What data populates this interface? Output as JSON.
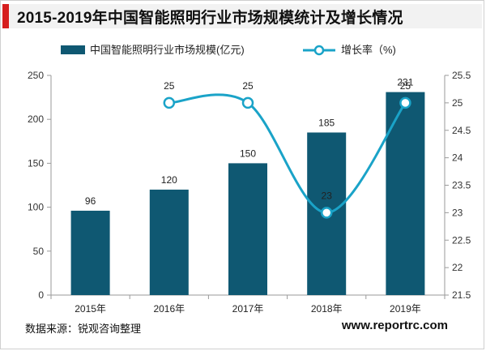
{
  "title": "2015-2019年中国智能照明行业市场规模统计及增长情况",
  "source": "数据来源：锐观咨询整理",
  "website": "www.reportrc.com",
  "colors": {
    "bar": "#0f5872",
    "line": "#1aa3c8",
    "accent": "#d61e1e"
  },
  "chart_data": {
    "type": "bar+line",
    "categories": [
      "2015年",
      "2016年",
      "2017年",
      "2018年",
      "2019年"
    ],
    "series": [
      {
        "name": "中国智能照明行业市场规模(亿元)",
        "type": "bar",
        "axis": "left",
        "values": [
          96,
          120,
          150,
          185,
          231
        ]
      },
      {
        "name": "增长率（%)",
        "type": "line",
        "axis": "right",
        "values": [
          null,
          25,
          25,
          23,
          25
        ]
      }
    ],
    "y_left": {
      "min": 0,
      "max": 250,
      "ticks": [
        0,
        50,
        100,
        150,
        200,
        250
      ]
    },
    "y_right": {
      "min": 21.5,
      "max": 25.5,
      "ticks": [
        "21.5",
        "22",
        "22.5",
        "23",
        "23.5",
        "24",
        "24.5",
        "25",
        "25.5"
      ]
    },
    "legend": {
      "position": "top"
    },
    "grid": false
  }
}
